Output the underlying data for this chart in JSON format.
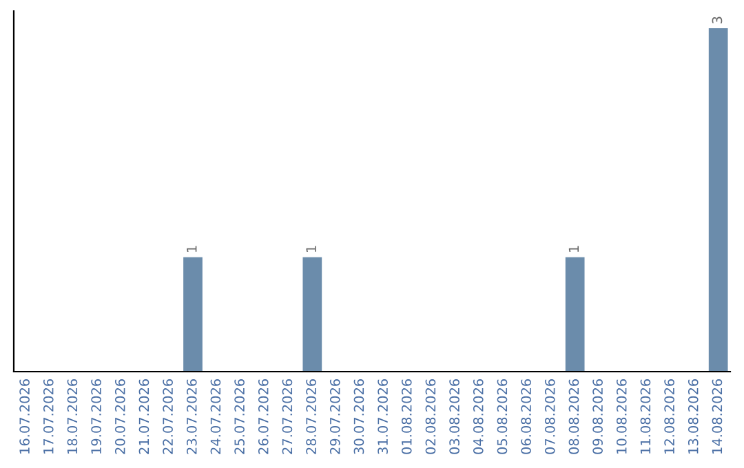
{
  "chart_data": {
    "type": "bar",
    "categories": [
      "16.07.2026",
      "17.07.2026",
      "18.07.2026",
      "19.07.2026",
      "20.07.2026",
      "21.07.2026",
      "22.07.2026",
      "23.07.2026",
      "24.07.2026",
      "25.07.2026",
      "26.07.2026",
      "27.07.2026",
      "28.07.2026",
      "29.07.2026",
      "30.07.2026",
      "31.07.2026",
      "01.08.2026",
      "02.08.2026",
      "03.08.2026",
      "04.08.2026",
      "05.08.2026",
      "06.08.2026",
      "07.08.2026",
      "08.08.2026",
      "09.08.2026",
      "10.08.2026",
      "11.08.2026",
      "12.08.2026",
      "13.08.2026",
      "14.08.2026"
    ],
    "values": [
      0,
      0,
      0,
      0,
      0,
      0,
      0,
      1,
      0,
      0,
      0,
      0,
      1,
      0,
      0,
      0,
      0,
      0,
      0,
      0,
      0,
      0,
      0,
      1,
      0,
      0,
      0,
      0,
      0,
      3
    ],
    "value_labels": [
      null,
      null,
      null,
      null,
      null,
      null,
      null,
      "1",
      null,
      null,
      null,
      null,
      "1",
      null,
      null,
      null,
      null,
      null,
      null,
      null,
      null,
      null,
      null,
      "1",
      null,
      null,
      null,
      null,
      null,
      "3"
    ],
    "color": "#6b8cab",
    "ylim": [
      0,
      3.15
    ],
    "tick_labels": "x",
    "grid": false,
    "legend": false
  }
}
